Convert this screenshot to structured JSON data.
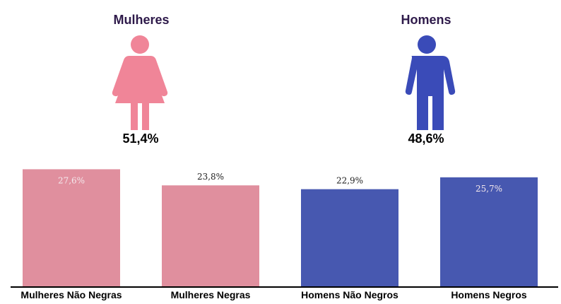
{
  "groups": {
    "women": {
      "title": "Mulheres",
      "percent": "51,4%",
      "icon": "woman-icon",
      "color": "#f08598"
    },
    "men": {
      "title": "Homens",
      "percent": "48,6%",
      "icon": "man-icon",
      "color": "#3a4bb8"
    }
  },
  "chart_data": {
    "type": "bar",
    "categories": [
      "Mulheres Não Negras",
      "Mulheres Negras",
      "Homens Não Negros",
      "Homens Negros"
    ],
    "values": [
      27.6,
      23.8,
      22.9,
      25.7
    ],
    "value_labels": [
      "27,6%",
      "23,8%",
      "22,9%",
      "25,7%"
    ],
    "colors": [
      "#e08f9e",
      "#e08f9e",
      "#4758b0",
      "#4758b0"
    ],
    "label_positions": [
      "inside",
      "above",
      "above",
      "inside"
    ],
    "title": "",
    "xlabel": "",
    "ylabel": "",
    "ylim": [
      0,
      30
    ],
    "grid": false,
    "legend": "none"
  }
}
